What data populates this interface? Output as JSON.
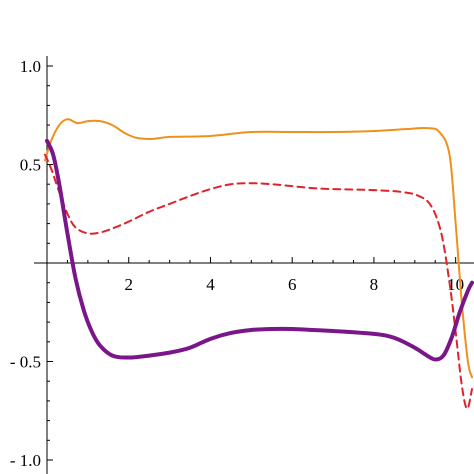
{
  "chart_data": {
    "type": "line",
    "title": "",
    "xlabel": "",
    "ylabel": "",
    "xlim": [
      0,
      10.4
    ],
    "ylim": [
      -1.0,
      1.0
    ],
    "x_ticks": [
      {
        "value": 2,
        "label": "2"
      },
      {
        "value": 4,
        "label": "4"
      },
      {
        "value": 6,
        "label": "6"
      },
      {
        "value": 8,
        "label": "8"
      },
      {
        "value": 10,
        "label": "10"
      }
    ],
    "y_ticks": [
      {
        "value": 1.0,
        "label": "1.0"
      },
      {
        "value": 0.5,
        "label": "0.5"
      },
      {
        "value": -0.5,
        "label": "- 0.5"
      },
      {
        "value": -1.0,
        "label": "- 1.0"
      }
    ],
    "grid": false,
    "legend": "none",
    "series": [
      {
        "color": "#f0901c",
        "style": "solid",
        "width": 2,
        "points": [
          [
            -0.05,
            0.52
          ],
          [
            0.1,
            0.62
          ],
          [
            0.3,
            0.7
          ],
          [
            0.5,
            0.73
          ],
          [
            0.75,
            0.71
          ],
          [
            1.0,
            0.72
          ],
          [
            1.3,
            0.72
          ],
          [
            1.6,
            0.7
          ],
          [
            1.9,
            0.66
          ],
          [
            2.2,
            0.635
          ],
          [
            2.6,
            0.63
          ],
          [
            3.0,
            0.64
          ],
          [
            4.0,
            0.645
          ],
          [
            5.0,
            0.665
          ],
          [
            6.0,
            0.665
          ],
          [
            7.0,
            0.665
          ],
          [
            8.0,
            0.67
          ],
          [
            8.8,
            0.68
          ],
          [
            9.3,
            0.685
          ],
          [
            9.6,
            0.665
          ],
          [
            9.85,
            0.55
          ],
          [
            10.0,
            0.2
          ],
          [
            10.15,
            -0.2
          ],
          [
            10.3,
            -0.5
          ],
          [
            10.4,
            -0.58
          ]
        ]
      },
      {
        "color": "#e0222a",
        "style": "dashed",
        "width": 2,
        "points": [
          [
            -0.05,
            0.55
          ],
          [
            0.1,
            0.48
          ],
          [
            0.3,
            0.36
          ],
          [
            0.5,
            0.25
          ],
          [
            0.7,
            0.18
          ],
          [
            1.0,
            0.15
          ],
          [
            1.3,
            0.155
          ],
          [
            1.6,
            0.175
          ],
          [
            2.0,
            0.21
          ],
          [
            2.5,
            0.26
          ],
          [
            3.0,
            0.3
          ],
          [
            3.5,
            0.34
          ],
          [
            4.0,
            0.375
          ],
          [
            4.5,
            0.4
          ],
          [
            5.0,
            0.405
          ],
          [
            5.5,
            0.4
          ],
          [
            6.0,
            0.39
          ],
          [
            6.5,
            0.38
          ],
          [
            7.0,
            0.375
          ],
          [
            8.0,
            0.37
          ],
          [
            8.7,
            0.36
          ],
          [
            9.1,
            0.34
          ],
          [
            9.4,
            0.29
          ],
          [
            9.65,
            0.15
          ],
          [
            9.85,
            -0.1
          ],
          [
            10.0,
            -0.35
          ],
          [
            10.15,
            -0.62
          ],
          [
            10.28,
            -0.74
          ],
          [
            10.4,
            -0.64
          ]
        ]
      },
      {
        "color": "#7a168a",
        "style": "solid",
        "width": 4,
        "points": [
          [
            0.0,
            0.62
          ],
          [
            0.15,
            0.55
          ],
          [
            0.3,
            0.4
          ],
          [
            0.5,
            0.15
          ],
          [
            0.7,
            -0.08
          ],
          [
            0.9,
            -0.24
          ],
          [
            1.1,
            -0.35
          ],
          [
            1.3,
            -0.42
          ],
          [
            1.6,
            -0.47
          ],
          [
            2.0,
            -0.48
          ],
          [
            2.5,
            -0.47
          ],
          [
            3.0,
            -0.455
          ],
          [
            3.5,
            -0.43
          ],
          [
            4.0,
            -0.385
          ],
          [
            4.5,
            -0.355
          ],
          [
            5.0,
            -0.34
          ],
          [
            5.5,
            -0.335
          ],
          [
            6.0,
            -0.335
          ],
          [
            6.5,
            -0.34
          ],
          [
            7.0,
            -0.345
          ],
          [
            8.0,
            -0.36
          ],
          [
            8.5,
            -0.38
          ],
          [
            9.0,
            -0.43
          ],
          [
            9.3,
            -0.47
          ],
          [
            9.5,
            -0.49
          ],
          [
            9.7,
            -0.47
          ],
          [
            9.9,
            -0.38
          ],
          [
            10.1,
            -0.25
          ],
          [
            10.3,
            -0.14
          ],
          [
            10.4,
            -0.1
          ]
        ]
      }
    ]
  }
}
